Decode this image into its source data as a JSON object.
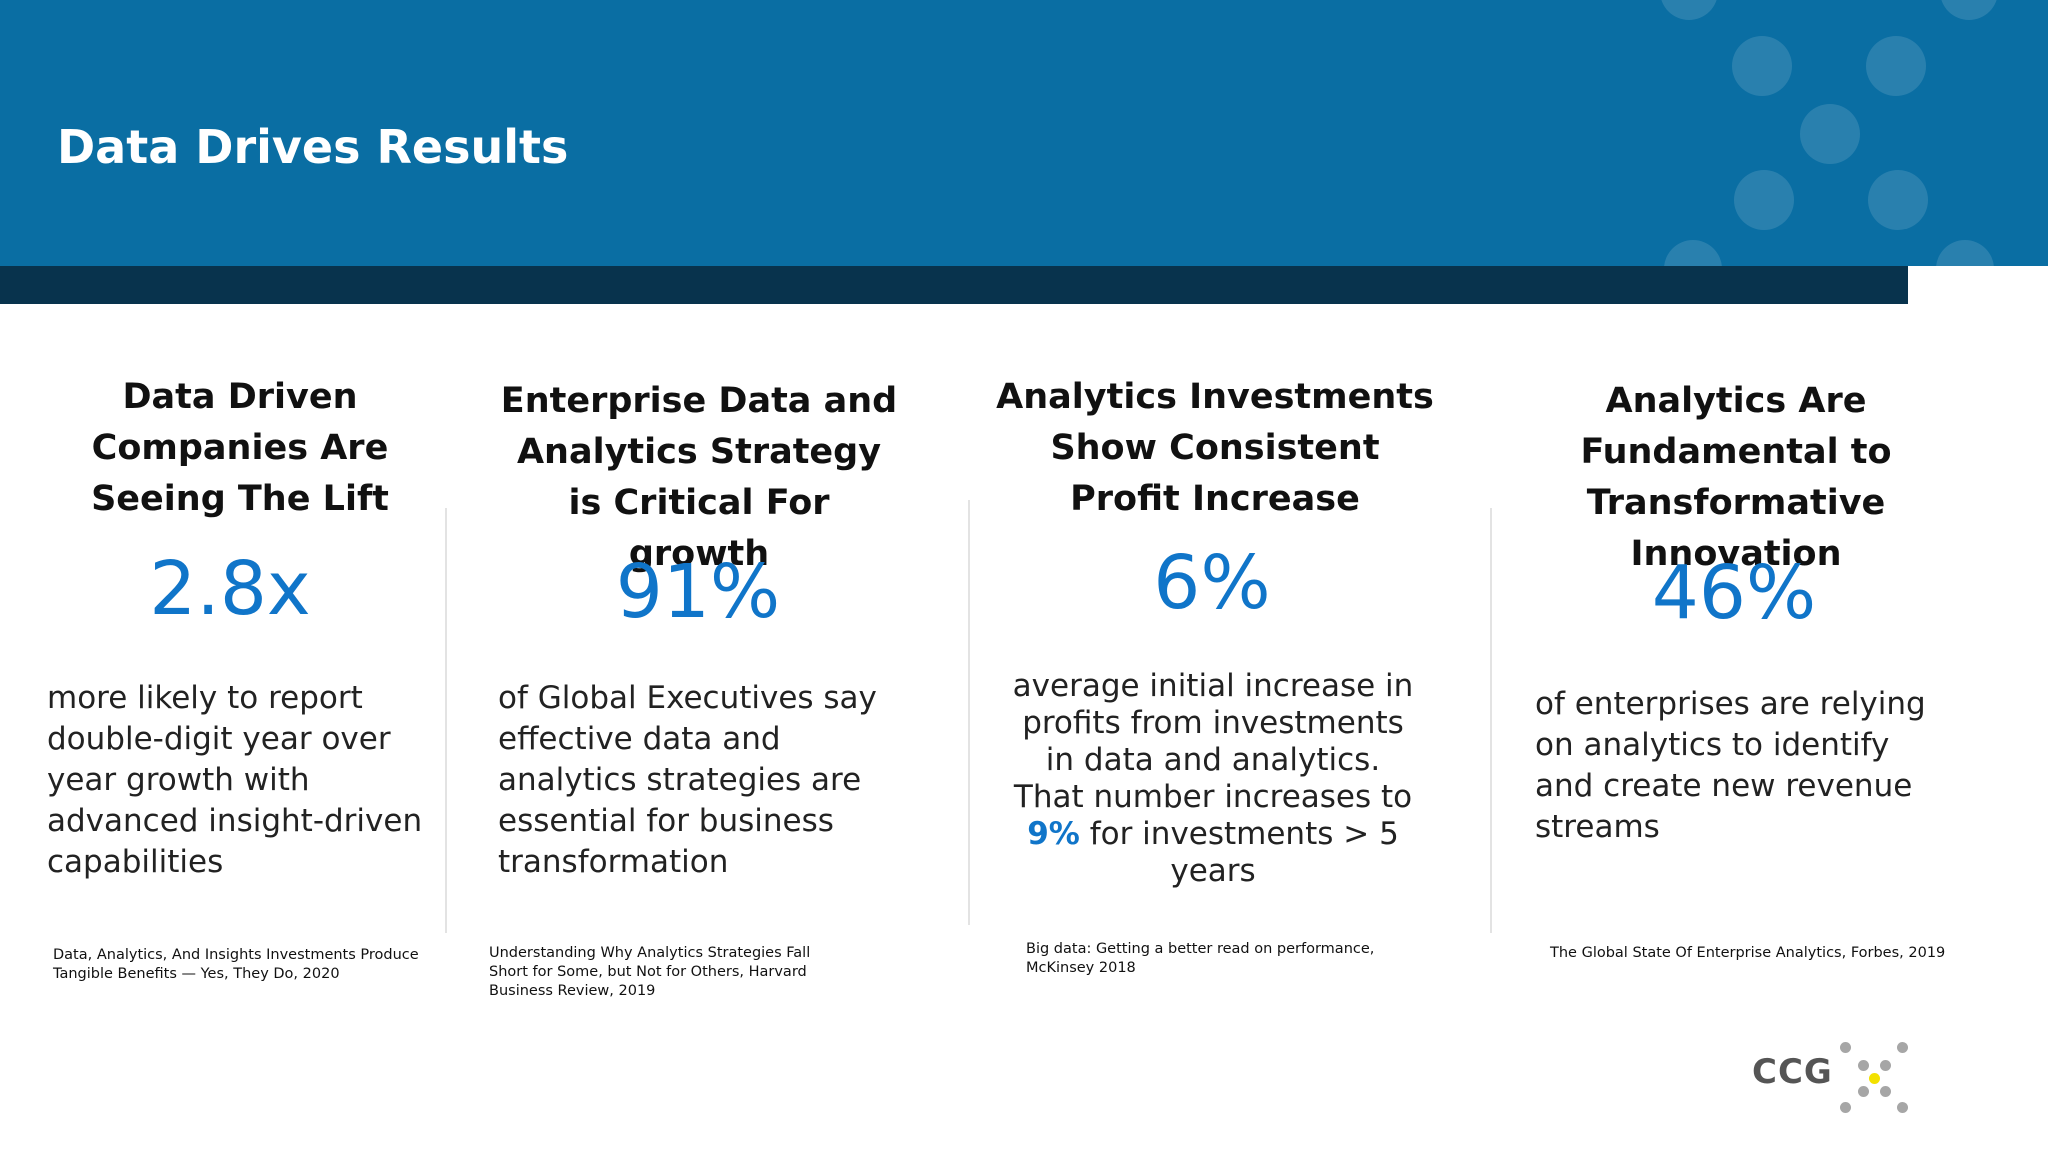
{
  "slide": {
    "title": "Data Drives Results",
    "colors": {
      "header_blue": "#0a6ea3",
      "dark_bar": "#08334d",
      "stat_blue": "#1075c9",
      "logo_yellow": "#f3e100"
    }
  },
  "columns": [
    {
      "heading": "Data Driven Companies Are Seeing The Lift",
      "stat": "2.8x",
      "body": "more likely to report double-digit year over year growth with advanced insight-driven capabilities",
      "source": "Data, Analytics, And Insights Investments Produce Tangible Benefits — Yes, They Do, 2020"
    },
    {
      "heading": "Enterprise Data and Analytics Strategy is Critical For growth",
      "stat": "91%",
      "body": "of Global Executives say effective data and analytics strategies are essential for business transformation",
      "source": "Understanding Why Analytics Strategies Fall Short for Some, but Not for Others, Harvard Business Review, 2019"
    },
    {
      "heading": "Analytics Investments Show Consistent Profit Increase",
      "stat": "6%",
      "body_before": "average initial increase in profits from investments in data and analytics. That number increases to",
      "body_highlight": "9%",
      "body_after": "for investments > 5 years",
      "source": "Big data: Getting a better read on performance, McKinsey 2018"
    },
    {
      "heading": "Analytics Are Fundamental to Transformative Innovation",
      "stat": "46%",
      "body": "of enterprises are relying on analytics to identify and create new revenue streams",
      "source": "The Global State Of Enterprise Analytics, Forbes, 2019"
    }
  ],
  "logo": {
    "text": "CCG",
    "icon": "dot-cluster-icon"
  }
}
